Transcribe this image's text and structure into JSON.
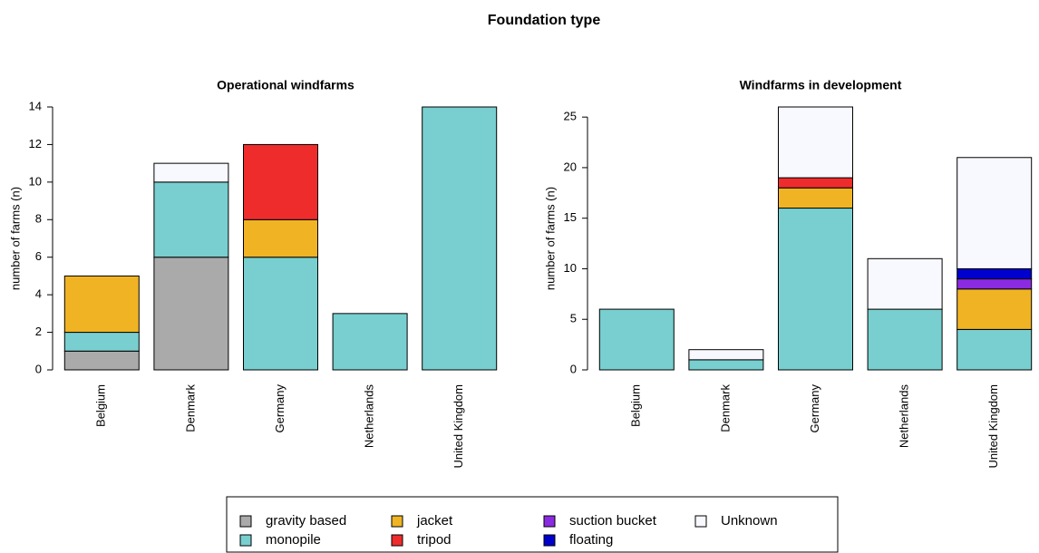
{
  "title": "Foundation type",
  "chart_data": [
    {
      "type": "stacked_bar",
      "title": "Operational windfarms",
      "ylabel": "number of farms (n)",
      "categories": [
        "Belgium",
        "Denmark",
        "Germany",
        "Netherlands",
        "United Kingdom"
      ],
      "ylim": [
        0,
        14
      ],
      "yticks": [
        0,
        2,
        4,
        6,
        8,
        10,
        12,
        14
      ],
      "series": [
        {
          "name": "gravity based",
          "color": "#aaaaaa",
          "values": [
            1,
            6,
            0,
            0,
            0
          ]
        },
        {
          "name": "monopile",
          "color": "#79cfcf",
          "values": [
            1,
            4,
            6,
            3,
            14
          ]
        },
        {
          "name": "jacket",
          "color": "#f0b323",
          "values": [
            3,
            0,
            2,
            0,
            0
          ]
        },
        {
          "name": "tripod",
          "color": "#ee2c2c",
          "values": [
            0,
            0,
            4,
            0,
            0
          ]
        },
        {
          "name": "suction bucket",
          "color": "#8a2be2",
          "values": [
            0,
            0,
            0,
            0,
            0
          ]
        },
        {
          "name": "floating",
          "color": "#0000cd",
          "values": [
            0,
            0,
            0,
            0,
            0
          ]
        },
        {
          "name": "Unknown",
          "color": "#f8f8ff",
          "values": [
            0,
            1,
            0,
            0,
            0
          ]
        }
      ]
    },
    {
      "type": "stacked_bar",
      "title": "Windfarms in development",
      "ylabel": "number of farms (n)",
      "categories": [
        "Belgium",
        "Denmark",
        "Germany",
        "Netherlands",
        "United Kingdom"
      ],
      "ylim": [
        0,
        26
      ],
      "yticks": [
        0,
        5,
        10,
        15,
        20,
        25
      ],
      "series": [
        {
          "name": "gravity based",
          "color": "#aaaaaa",
          "values": [
            0,
            0,
            0,
            0,
            0
          ]
        },
        {
          "name": "monopile",
          "color": "#79cfcf",
          "values": [
            6,
            1,
            16,
            6,
            4
          ]
        },
        {
          "name": "jacket",
          "color": "#f0b323",
          "values": [
            0,
            0,
            2,
            0,
            4
          ]
        },
        {
          "name": "tripod",
          "color": "#ee2c2c",
          "values": [
            0,
            0,
            1,
            0,
            0
          ]
        },
        {
          "name": "suction bucket",
          "color": "#8a2be2",
          "values": [
            0,
            0,
            0,
            0,
            1
          ]
        },
        {
          "name": "floating",
          "color": "#0000cd",
          "values": [
            0,
            0,
            0,
            0,
            1
          ]
        },
        {
          "name": "Unknown",
          "color": "#f8f8ff",
          "values": [
            0,
            1,
            7,
            5,
            11
          ]
        }
      ]
    }
  ]
}
